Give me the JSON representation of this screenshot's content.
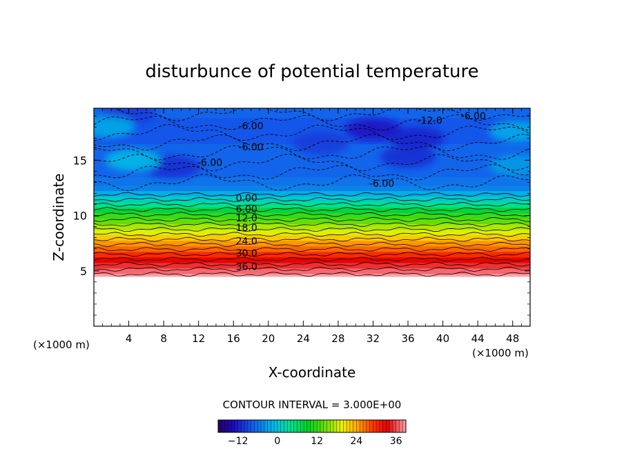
{
  "chart_data": {
    "type": "heatmap",
    "title": "disturbunce of potential temperature",
    "xlabel": "X-coordinate",
    "ylabel": "Z-coordinate",
    "x_unit": "(×1000 m)",
    "x_unit_right": "(×1000 m)",
    "xlim": [
      0,
      50
    ],
    "ylim": [
      0,
      19.7
    ],
    "x_ticks": [
      4,
      8,
      12,
      16,
      20,
      24,
      28,
      32,
      36,
      40,
      44,
      48
    ],
    "y_ticks": [
      5,
      10,
      15
    ],
    "contour_interval_text": "CONTOUR INTERVAL = 3.000E+00",
    "colorbar": {
      "range": [
        -18,
        39
      ],
      "ticks": [
        -12,
        0,
        12,
        24,
        36
      ]
    },
    "contour_labels": [
      {
        "text": "36.0",
        "x": 17.5,
        "z": 5.4
      },
      {
        "text": "30.0",
        "x": 17.5,
        "z": 6.6
      },
      {
        "text": "24.0",
        "x": 17.5,
        "z": 7.7
      },
      {
        "text": "18.0",
        "x": 17.5,
        "z": 8.9
      },
      {
        "text": "12.0",
        "x": 17.5,
        "z": 9.8
      },
      {
        "text": "6.00",
        "x": 17.5,
        "z": 10.6
      },
      {
        "text": "0.00",
        "x": 17.5,
        "z": 11.6
      },
      {
        "text": "-6.00",
        "x": 13.3,
        "z": 14.8
      },
      {
        "text": "-6.00",
        "x": 18.0,
        "z": 16.2
      },
      {
        "text": "-6.00",
        "x": 18.0,
        "z": 18.1
      },
      {
        "text": "-6.00",
        "x": 33.0,
        "z": 12.9
      },
      {
        "text": "-6.00",
        "x": 43.5,
        "z": 19.0
      },
      {
        "text": "-12.0",
        "x": 38.5,
        "z": 18.6
      }
    ],
    "rows": [
      {
        "z": 4.5,
        "theta": 39
      },
      {
        "z": 5.0,
        "theta": 37
      },
      {
        "z": 5.5,
        "theta": 35
      },
      {
        "z": 6.0,
        "theta": 33
      },
      {
        "z": 6.5,
        "theta": 30
      },
      {
        "z": 7.0,
        "theta": 27
      },
      {
        "z": 7.5,
        "theta": 25
      },
      {
        "z": 8.0,
        "theta": 22
      },
      {
        "z": 8.5,
        "theta": 19
      },
      {
        "z": 9.0,
        "theta": 17
      },
      {
        "z": 9.5,
        "theta": 14
      },
      {
        "z": 10.0,
        "theta": 12
      },
      {
        "z": 10.5,
        "theta": 8
      },
      {
        "z": 11.0,
        "theta": 4
      },
      {
        "z": 11.5,
        "theta": 1
      },
      {
        "z": 12.0,
        "theta": -2
      },
      {
        "z": 12.5,
        "theta": -5
      },
      {
        "z": 13.0,
        "theta": -6
      },
      {
        "z": 14.0,
        "theta": -7
      },
      {
        "z": 15.0,
        "theta": -7
      },
      {
        "z": 16.0,
        "theta": -7
      },
      {
        "z": 17.0,
        "theta": -8
      },
      {
        "z": 18.0,
        "theta": -8
      },
      {
        "z": 19.7,
        "theta": -7
      }
    ],
    "low_patches": [
      {
        "x": 32,
        "z": 17.8,
        "theta": -13
      },
      {
        "x": 37,
        "z": 17.0,
        "theta": -12
      },
      {
        "x": 36,
        "z": 15.3,
        "theta": -11
      },
      {
        "x": 9,
        "z": 14.4,
        "theta": -11
      },
      {
        "x": 26,
        "z": 16.5,
        "theta": -10
      },
      {
        "x": 4,
        "z": 19.2,
        "theta": -10
      }
    ],
    "high_patches": [
      {
        "x": 1.5,
        "z": 18.0,
        "theta": -2
      },
      {
        "x": 4.5,
        "z": 15.0,
        "theta": -1
      },
      {
        "x": 48.5,
        "z": 17.6,
        "theta": -2
      },
      {
        "x": 48.5,
        "z": 14.5,
        "theta": -3
      }
    ],
    "grid": false,
    "legend": "colorbar-bottom"
  }
}
